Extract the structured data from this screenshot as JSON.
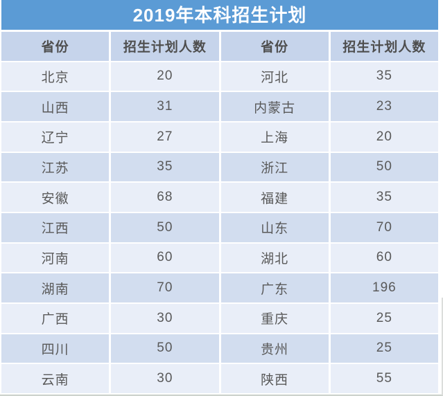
{
  "title": "2019年本科招生计划",
  "table": {
    "headers": [
      "省份",
      "招生计划人数",
      "省份",
      "招生计划人数"
    ],
    "rows": [
      [
        "北京",
        "20",
        "河北",
        "35"
      ],
      [
        "山西",
        "31",
        "内蒙古",
        "23"
      ],
      [
        "辽宁",
        "27",
        "上海",
        "20"
      ],
      [
        "江苏",
        "35",
        "浙江",
        "50"
      ],
      [
        "安徽",
        "68",
        "福建",
        "35"
      ],
      [
        "江西",
        "50",
        "山东",
        "70"
      ],
      [
        "河南",
        "60",
        "湖北",
        "60"
      ],
      [
        "湖南",
        "70",
        "广东",
        "196"
      ],
      [
        "广西",
        "30",
        "重庆",
        "25"
      ],
      [
        "四川",
        "50",
        "贵州",
        "25"
      ],
      [
        "云南",
        "30",
        "陕西",
        "55"
      ]
    ]
  },
  "colors": {
    "title_bar_bg": "#5B9BD5",
    "title_text": "#FFFFFF",
    "header_bg": "#C6D4EB",
    "header_text": "#4E4E4E",
    "row_light_bg": "#E9EEF8",
    "row_dark_bg": "#D2DDEF",
    "cell_text": "#595959",
    "grid_line": "#FFFFFF",
    "page_edge": "#C9CFC9"
  }
}
